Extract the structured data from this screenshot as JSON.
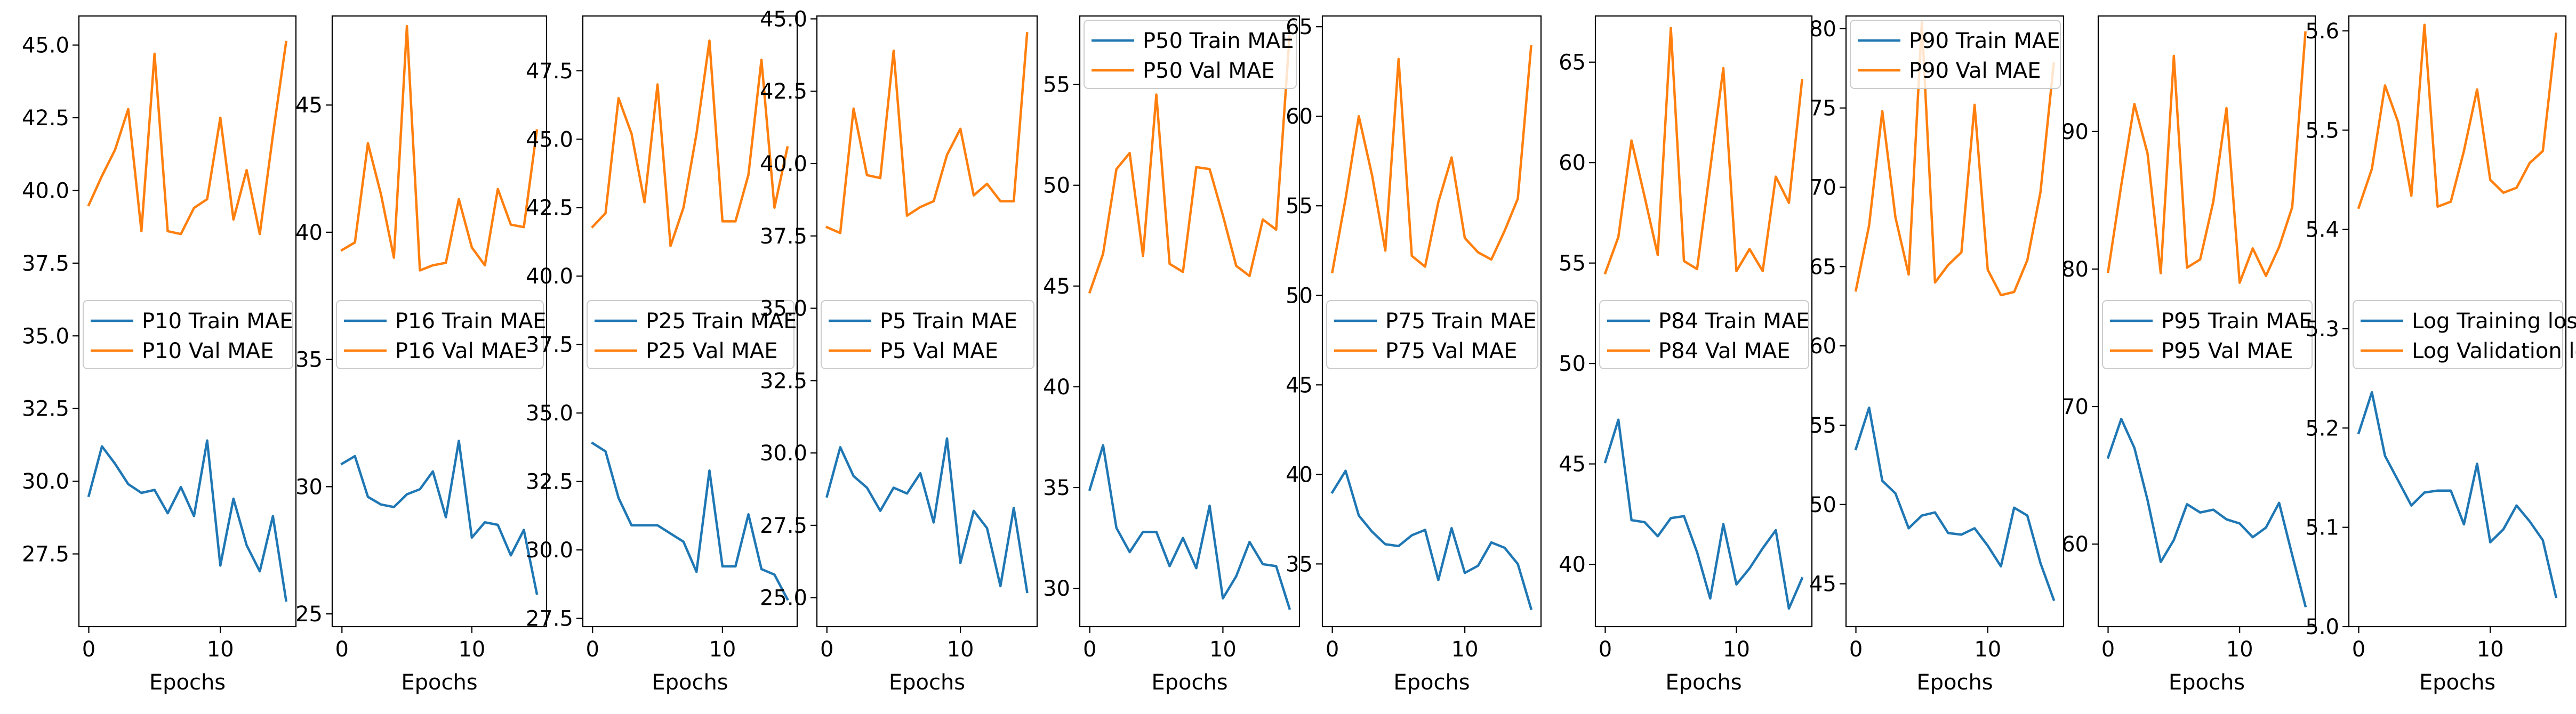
{
  "colors": {
    "train": "#1f77b4",
    "val": "#ff7f0e"
  },
  "chart_data": [
    {
      "type": "line",
      "xlabel": "Epochs",
      "x": [
        0,
        1,
        2,
        3,
        4,
        5,
        6,
        7,
        8,
        9,
        10,
        11,
        12,
        13,
        14,
        15
      ],
      "ylim": [
        25,
        46
      ],
      "yticks": [
        27.5,
        30.0,
        32.5,
        35.0,
        37.5,
        40.0,
        42.5,
        45.0
      ],
      "ytick_labels": [
        "27.5",
        "30.0",
        "32.5",
        "35.0",
        "37.5",
        "40.0",
        "42.5",
        "45.0"
      ],
      "xticks": [
        0,
        10
      ],
      "legend_loc": "center-left",
      "series": [
        {
          "name": "P10 Train MAE",
          "color_key": "train",
          "values": [
            29.5,
            31.2,
            30.6,
            29.9,
            29.6,
            29.7,
            28.9,
            29.8,
            28.8,
            31.4,
            27.1,
            29.4,
            27.8,
            26.9,
            28.8,
            25.9
          ]
        },
        {
          "name": "P10 Val MAE",
          "color_key": "val",
          "values": [
            39.5,
            40.5,
            41.4,
            42.8,
            38.6,
            44.7,
            38.6,
            38.5,
            39.4,
            39.7,
            42.5,
            39.0,
            40.7,
            38.5,
            41.9,
            45.1
          ]
        }
      ]
    },
    {
      "type": "line",
      "xlabel": "Epochs",
      "x": [
        0,
        1,
        2,
        3,
        4,
        5,
        6,
        7,
        8,
        9,
        10,
        11,
        12,
        13,
        14,
        15
      ],
      "ylim": [
        24.5,
        48.5
      ],
      "yticks": [
        25,
        30,
        35,
        40,
        45
      ],
      "ytick_labels": [
        "25",
        "30",
        "35",
        "40",
        "45"
      ],
      "xticks": [
        0,
        10
      ],
      "legend_loc": "center-left",
      "series": [
        {
          "name": "P16 Train MAE",
          "color_key": "train",
          "values": [
            30.9,
            31.2,
            29.6,
            29.3,
            29.2,
            29.7,
            29.9,
            30.6,
            28.8,
            31.8,
            28.0,
            28.6,
            28.5,
            27.3,
            28.3,
            25.8
          ]
        },
        {
          "name": "P16 Val MAE",
          "color_key": "val",
          "values": [
            39.3,
            39.6,
            43.5,
            41.5,
            39.0,
            48.1,
            38.5,
            38.7,
            38.8,
            41.3,
            39.4,
            38.7,
            41.7,
            40.3,
            40.2,
            44.0
          ]
        }
      ]
    },
    {
      "type": "line",
      "xlabel": "Epochs",
      "x": [
        0,
        1,
        2,
        3,
        4,
        5,
        6,
        7,
        8,
        9,
        10,
        11,
        12,
        13,
        14,
        15
      ],
      "ylim": [
        27.2,
        49.5
      ],
      "yticks": [
        27.5,
        30.0,
        32.5,
        35.0,
        37.5,
        40.0,
        42.5,
        45.0,
        47.5
      ],
      "ytick_labels": [
        "27.5",
        "30.0",
        "32.5",
        "35.0",
        "37.5",
        "40.0",
        "42.5",
        "45.0",
        "47.5"
      ],
      "xticks": [
        0,
        10
      ],
      "legend_loc": "center-left",
      "series": [
        {
          "name": "P25 Train MAE",
          "color_key": "train",
          "values": [
            33.9,
            33.6,
            31.9,
            30.9,
            30.9,
            30.9,
            30.6,
            30.3,
            29.2,
            32.9,
            29.4,
            29.4,
            31.3,
            29.3,
            29.1,
            28.2
          ]
        },
        {
          "name": "P25 Val MAE",
          "color_key": "val",
          "values": [
            41.8,
            42.3,
            46.5,
            45.2,
            42.7,
            47.0,
            41.1,
            42.5,
            45.2,
            48.6,
            42.0,
            42.0,
            43.7,
            47.9,
            42.5,
            44.7
          ]
        }
      ]
    },
    {
      "type": "line",
      "xlabel": "Epochs",
      "x": [
        0,
        1,
        2,
        3,
        4,
        5,
        6,
        7,
        8,
        9,
        10,
        11,
        12,
        13,
        14,
        15
      ],
      "ylim": [
        24.0,
        45.1
      ],
      "yticks": [
        25.0,
        27.5,
        30.0,
        32.5,
        35.0,
        37.5,
        40.0,
        42.5,
        45.0
      ],
      "ytick_labels": [
        "25.0",
        "27.5",
        "30.0",
        "32.5",
        "35.0",
        "37.5",
        "40.0",
        "42.5",
        "45.0"
      ],
      "xticks": [
        0,
        10
      ],
      "legend_loc": "center-left",
      "series": [
        {
          "name": "P5 Train MAE",
          "color_key": "train",
          "values": [
            28.5,
            30.2,
            29.2,
            28.8,
            28.0,
            28.8,
            28.6,
            29.3,
            27.6,
            30.5,
            26.2,
            28.0,
            27.4,
            25.4,
            28.1,
            25.2
          ]
        },
        {
          "name": "P5 Val MAE",
          "color_key": "val",
          "values": [
            37.8,
            37.6,
            41.9,
            39.6,
            39.5,
            43.9,
            38.2,
            38.5,
            38.7,
            40.3,
            41.2,
            38.9,
            39.3,
            38.7,
            38.7,
            44.5
          ]
        }
      ]
    },
    {
      "type": "line",
      "xlabel": "Epochs",
      "x": [
        0,
        1,
        2,
        3,
        4,
        5,
        6,
        7,
        8,
        9,
        10,
        11,
        12,
        13,
        14,
        15
      ],
      "ylim": [
        28.1,
        58.4
      ],
      "yticks": [
        30,
        35,
        40,
        45,
        50,
        55
      ],
      "ytick_labels": [
        "30",
        "35",
        "40",
        "45",
        "50",
        "55"
      ],
      "xticks": [
        0,
        10
      ],
      "legend_loc": "upper-left",
      "series": [
        {
          "name": "P50 Train MAE",
          "color_key": "train",
          "values": [
            34.9,
            37.1,
            33.0,
            31.8,
            32.8,
            32.8,
            31.1,
            32.5,
            31.0,
            34.1,
            29.5,
            30.6,
            32.3,
            31.2,
            31.1,
            29.0
          ]
        },
        {
          "name": "P50 Val MAE",
          "color_key": "val",
          "values": [
            44.7,
            46.6,
            50.8,
            51.6,
            46.5,
            54.5,
            46.1,
            45.7,
            50.9,
            50.8,
            48.5,
            46.0,
            45.5,
            48.3,
            47.8,
            57.4
          ]
        }
      ]
    },
    {
      "type": "line",
      "xlabel": "Epochs",
      "x": [
        0,
        1,
        2,
        3,
        4,
        5,
        6,
        7,
        8,
        9,
        10,
        11,
        12,
        13,
        14,
        15
      ],
      "ylim": [
        31.5,
        65.6
      ],
      "yticks": [
        35,
        40,
        45,
        50,
        55,
        60,
        65
      ],
      "ytick_labels": [
        "35",
        "40",
        "45",
        "50",
        "55",
        "60",
        "65"
      ],
      "xticks": [
        0,
        10
      ],
      "legend_loc": "center-left",
      "series": [
        {
          "name": "P75 Train MAE",
          "color_key": "train",
          "values": [
            39.0,
            40.2,
            37.7,
            36.8,
            36.1,
            36.0,
            36.6,
            36.9,
            34.1,
            37.0,
            34.5,
            34.9,
            36.2,
            35.9,
            35.0,
            32.5
          ]
        },
        {
          "name": "P75 Val MAE",
          "color_key": "val",
          "values": [
            51.3,
            55.4,
            60.0,
            56.7,
            52.5,
            63.2,
            52.2,
            51.6,
            55.2,
            57.7,
            53.2,
            52.4,
            52.0,
            53.6,
            55.4,
            63.9
          ]
        }
      ]
    },
    {
      "type": "line",
      "xlabel": "Epochs",
      "x": [
        0,
        1,
        2,
        3,
        4,
        5,
        6,
        7,
        8,
        9,
        10,
        11,
        12,
        13,
        14,
        15
      ],
      "ylim": [
        36.9,
        67.3
      ],
      "yticks": [
        40,
        45,
        50,
        55,
        60,
        65
      ],
      "ytick_labels": [
        "40",
        "45",
        "50",
        "55",
        "60",
        "65"
      ],
      "xticks": [
        0,
        10
      ],
      "legend_loc": "center-left",
      "series": [
        {
          "name": "P84 Train MAE",
          "color_key": "train",
          "values": [
            45.1,
            47.2,
            42.2,
            42.1,
            41.4,
            42.3,
            42.4,
            40.6,
            38.3,
            42.0,
            39.0,
            39.8,
            40.8,
            41.7,
            37.8,
            39.3
          ]
        },
        {
          "name": "P84 Val MAE",
          "color_key": "val",
          "values": [
            54.5,
            56.3,
            61.1,
            58.3,
            55.4,
            66.7,
            55.1,
            54.7,
            59.7,
            64.7,
            54.6,
            55.7,
            54.6,
            59.3,
            58.0,
            64.1
          ]
        }
      ]
    },
    {
      "type": "line",
      "xlabel": "Epochs",
      "x": [
        0,
        1,
        2,
        3,
        4,
        5,
        6,
        7,
        8,
        9,
        10,
        11,
        12,
        13,
        14,
        15
      ],
      "ylim": [
        42.3,
        80.8
      ],
      "yticks": [
        45,
        50,
        55,
        60,
        65,
        70,
        75,
        80
      ],
      "ytick_labels": [
        "45",
        "50",
        "55",
        "60",
        "65",
        "70",
        "75",
        "80"
      ],
      "xticks": [
        0,
        10
      ],
      "legend_loc": "upper-left",
      "series": [
        {
          "name": "P90 Train MAE",
          "color_key": "train",
          "values": [
            53.5,
            56.1,
            51.5,
            50.7,
            48.5,
            49.3,
            49.5,
            48.2,
            48.1,
            48.5,
            47.4,
            46.1,
            49.8,
            49.3,
            46.3,
            44.0
          ]
        },
        {
          "name": "P90 Val MAE",
          "color_key": "val",
          "values": [
            63.5,
            67.6,
            74.8,
            68.1,
            64.5,
            80.4,
            64.0,
            65.1,
            65.9,
            75.2,
            64.8,
            63.2,
            63.4,
            65.4,
            69.7,
            77.8
          ]
        }
      ]
    },
    {
      "type": "line",
      "xlabel": "Epochs",
      "x": [
        0,
        1,
        2,
        3,
        4,
        5,
        6,
        7,
        8,
        9,
        10,
        11,
        12,
        13,
        14,
        15
      ],
      "ylim": [
        54.0,
        98.4
      ],
      "yticks": [
        60,
        70,
        80,
        90
      ],
      "ytick_labels": [
        "60",
        "70",
        "80",
        "90"
      ],
      "xticks": [
        0,
        10
      ],
      "legend_loc": "center-left",
      "series": [
        {
          "name": "P95 Train MAE",
          "color_key": "train",
          "values": [
            66.3,
            69.1,
            67.0,
            63.2,
            58.7,
            60.3,
            62.9,
            62.3,
            62.5,
            61.8,
            61.5,
            60.5,
            61.2,
            63.0,
            59.2,
            55.5
          ]
        },
        {
          "name": "P95 Val MAE",
          "color_key": "val",
          "values": [
            79.8,
            86.1,
            92.0,
            88.4,
            79.7,
            95.5,
            80.1,
            80.7,
            84.9,
            91.7,
            79.0,
            81.5,
            79.5,
            81.6,
            84.5,
            97.2
          ]
        }
      ]
    },
    {
      "type": "line",
      "xlabel": "Epochs",
      "x": [
        0,
        1,
        2,
        3,
        4,
        5,
        6,
        7,
        8,
        9,
        10,
        11,
        12,
        13,
        14,
        15
      ],
      "ylim": [
        5.0,
        5.615
      ],
      "yticks": [
        5.0,
        5.1,
        5.2,
        5.3,
        5.4,
        5.5,
        5.6
      ],
      "ytick_labels": [
        "5.0",
        "5.1",
        "5.2",
        "5.3",
        "5.4",
        "5.5",
        "5.6"
      ],
      "xticks": [
        0,
        10
      ],
      "legend_loc": "center-left",
      "series": [
        {
          "name": "Log Training loss",
          "color_key": "train",
          "values": [
            5.195,
            5.236,
            5.172,
            5.147,
            5.122,
            5.135,
            5.137,
            5.137,
            5.103,
            5.164,
            5.085,
            5.098,
            5.122,
            5.106,
            5.087,
            5.03
          ]
        },
        {
          "name": "Log Validation loss",
          "color_key": "val",
          "values": [
            5.422,
            5.461,
            5.545,
            5.508,
            5.434,
            5.606,
            5.423,
            5.428,
            5.479,
            5.541,
            5.45,
            5.437,
            5.442,
            5.467,
            5.479,
            5.597
          ]
        }
      ]
    }
  ]
}
